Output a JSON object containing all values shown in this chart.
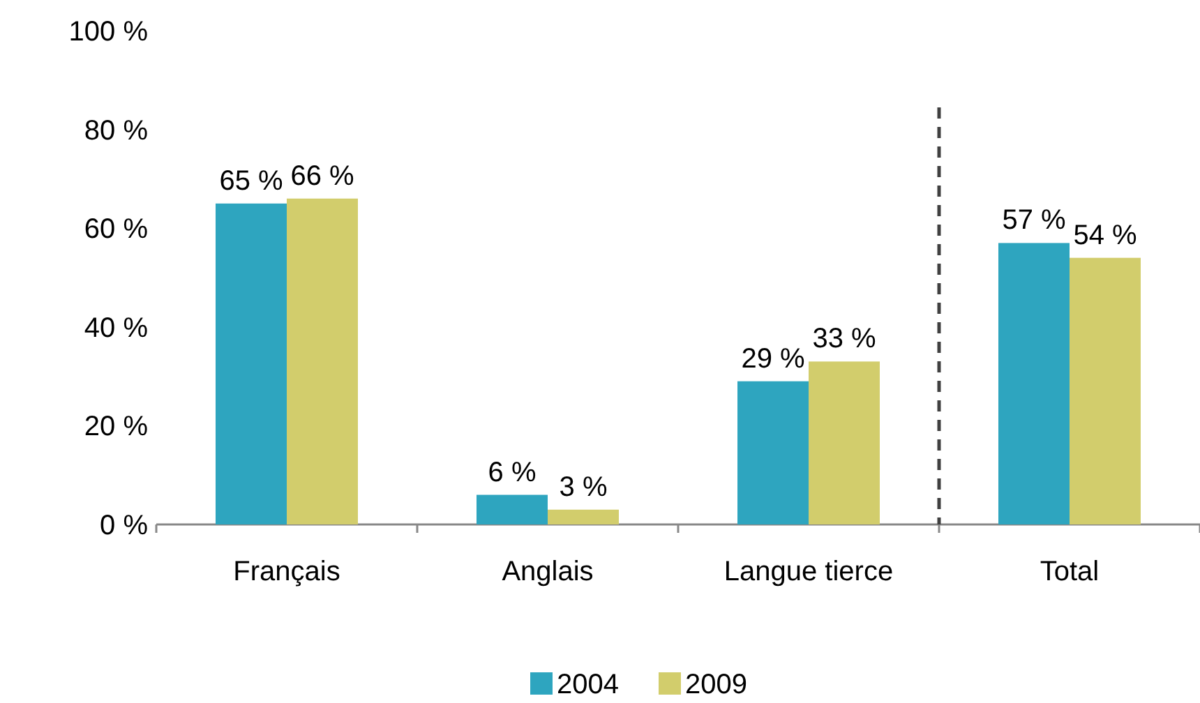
{
  "chart_data": {
    "type": "bar",
    "categories": [
      "Français",
      "Anglais",
      "Langue tierce",
      "Total"
    ],
    "series": [
      {
        "name": "2004",
        "color": "#2ea5bf",
        "values": [
          65,
          6,
          29,
          57
        ],
        "value_labels": [
          "65 %",
          "6 %",
          "29 %",
          "57 %"
        ]
      },
      {
        "name": "2009",
        "color": "#d2cd6c",
        "values": [
          66,
          3,
          33,
          54
        ],
        "value_labels": [
          "66 %",
          "3 %",
          "33 %",
          "54 %"
        ]
      }
    ],
    "ylim": [
      0,
      100
    ],
    "yticks": [
      {
        "value": 0,
        "label": "0 %"
      },
      {
        "value": 20,
        "label": "20 %"
      },
      {
        "value": 40,
        "label": "40 %"
      },
      {
        "value": 60,
        "label": "60 %"
      },
      {
        "value": 80,
        "label": "80 %"
      },
      {
        "value": 100,
        "label": "100 %"
      }
    ],
    "legend": "bottom"
  }
}
